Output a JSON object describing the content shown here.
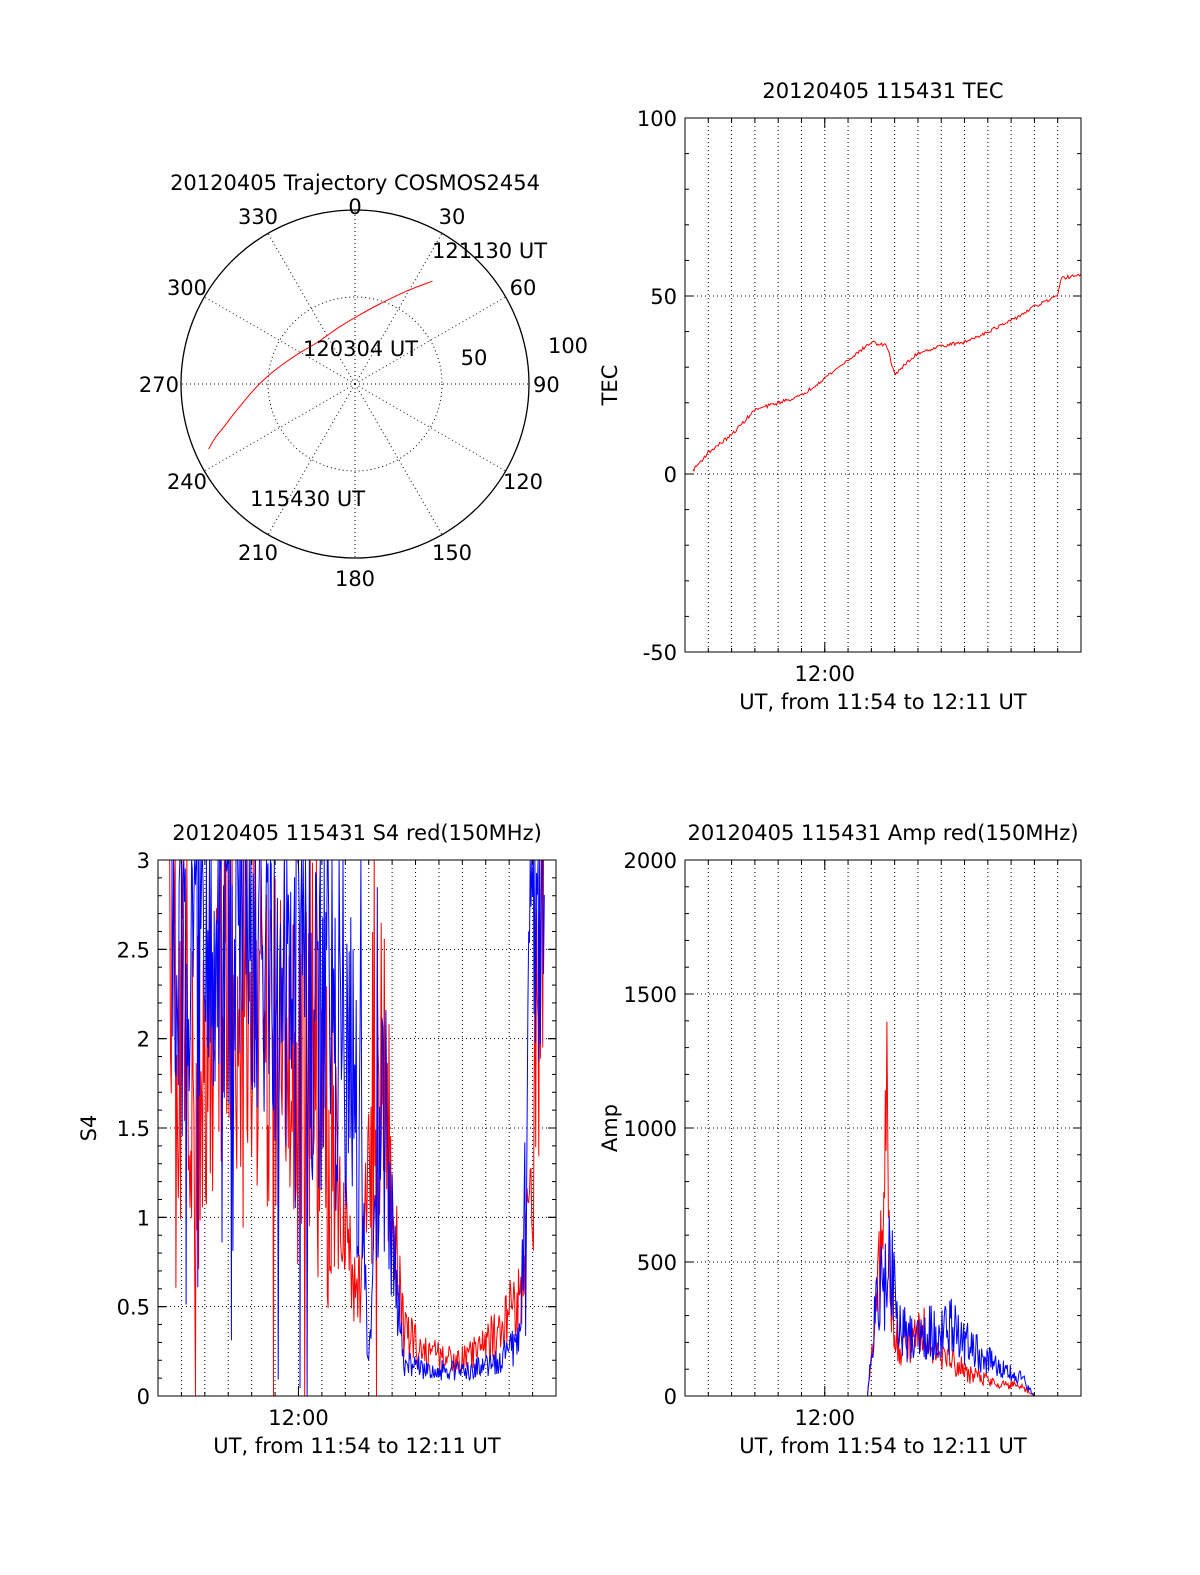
{
  "figure": {
    "colors": {
      "red": "#ff0000",
      "blue": "#0000ff",
      "axes": "#000000"
    }
  },
  "chart_data": [
    {
      "id": "trajectory",
      "type": "polar",
      "title": "20120405 Trajectory COSMOS2454",
      "azimuth_labels": [
        "0",
        "30",
        "60",
        "90",
        "120",
        "150",
        "180",
        "210",
        "240",
        "270",
        "300",
        "330"
      ],
      "radial_labels": [
        "50",
        "100"
      ],
      "radial_range": [
        0,
        100
      ],
      "grid": true,
      "series": [
        {
          "color": "#ff0000",
          "azimuth_deg": [
            246,
            249,
            252,
            256,
            260,
            265,
            271,
            278,
            287,
            298,
            312,
            328,
            345,
            2,
            17,
            29,
            37
          ],
          "radius": [
            92,
            86,
            79,
            72,
            66,
            60,
            54,
            48,
            42,
            37,
            33,
            32,
            34,
            39,
            48,
            61,
            74
          ]
        }
      ],
      "annotations": [
        {
          "text": "121130 UT",
          "azimuth_deg": 37,
          "radius": 74
        },
        {
          "text": "120304 UT",
          "azimuth_deg": 340,
          "radius": 22
        },
        {
          "text": "115430 UT",
          "azimuth_deg": 236,
          "radius": 92
        }
      ]
    },
    {
      "id": "tec",
      "type": "line",
      "title": "20120405 115431 TEC",
      "xlabel": "UT, from 11:54 to 12:11 UT",
      "ylabel": "TEC",
      "xlim": [
        "11:54",
        "12:11"
      ],
      "ylim": [
        -50,
        100
      ],
      "yticks": [
        -50,
        0,
        50,
        100
      ],
      "xticks": [
        {
          "value": "12:00",
          "label": "12:00"
        }
      ],
      "grid": true,
      "series": [
        {
          "color": "#ff0000",
          "x": [
            "11:54:20",
            "11:55:00",
            "11:56:00",
            "11:57:00",
            "11:58:00",
            "11:59:00",
            "12:00:00",
            "12:01:00",
            "12:02:00",
            "12:02:40",
            "12:03:00",
            "12:03:20",
            "12:04:00",
            "12:05:00",
            "12:06:00",
            "12:07:00",
            "12:08:00",
            "12:09:00",
            "12:10:00",
            "12:10:10",
            "12:11:00"
          ],
          "y": [
            1,
            6,
            11,
            18,
            20,
            22,
            27,
            32,
            37,
            36,
            28,
            30,
            34,
            36,
            37,
            40,
            43,
            47,
            50,
            55,
            56
          ]
        }
      ]
    },
    {
      "id": "s4",
      "type": "line",
      "title": "20120405 115431 S4 red(150MHz)",
      "xlabel": "UT, from 11:54 to 12:11 UT",
      "ylabel": "S4",
      "xlim": [
        "11:54",
        "12:11"
      ],
      "ylim": [
        0,
        3
      ],
      "yticks": [
        0,
        0.5,
        1,
        1.5,
        2,
        2.5,
        3
      ],
      "ytick_labels": [
        "0",
        "0.5",
        "1",
        "1.5",
        "2",
        "2.5",
        "3"
      ],
      "xticks": [
        {
          "value": "12:00",
          "label": "12:00"
        }
      ],
      "grid": true,
      "series": [
        {
          "color": "#ff0000",
          "x": [
            "11:54:30",
            "11:55:30",
            "11:56:30",
            "11:57:30",
            "11:58:30",
            "11:59:30",
            "12:00:30",
            "12:01:30",
            "12:02:30",
            "12:03:30",
            "12:04:30",
            "12:05:30",
            "12:06:30",
            "12:07:30",
            "12:08:30",
            "12:09:30",
            "12:10:00",
            "12:10:30"
          ],
          "y": [
            2.6,
            1.4,
            2.4,
            2.3,
            2.0,
            1.9,
            1.6,
            1.3,
            0.5,
            1.8,
            0.35,
            0.25,
            0.2,
            0.25,
            0.35,
            0.6,
            1.1,
            2.8
          ]
        },
        {
          "color": "#0000ff",
          "x": [
            "11:54:30",
            "11:55:30",
            "11:56:30",
            "11:57:30",
            "11:58:30",
            "11:59:30",
            "12:00:30",
            "12:01:30",
            "12:02:30",
            "12:03:00",
            "12:03:30",
            "12:04:30",
            "12:05:30",
            "12:06:30",
            "12:07:30",
            "12:08:30",
            "12:09:30",
            "12:10:00",
            "12:10:30"
          ],
          "y": [
            2.8,
            2.7,
            2.7,
            2.8,
            2.6,
            2.4,
            2.3,
            2.1,
            1.8,
            0.15,
            1.6,
            0.18,
            0.15,
            0.14,
            0.15,
            0.2,
            0.3,
            2.9,
            2.9
          ]
        }
      ]
    },
    {
      "id": "amp",
      "type": "line",
      "title": "20120405 115431 Amp red(150MHz)",
      "xlabel": "UT, from 11:54 to 12:11 UT",
      "ylabel": "Amp",
      "xlim": [
        "11:54",
        "12:11"
      ],
      "ylim": [
        0,
        2000
      ],
      "yticks": [
        0,
        500,
        1000,
        1500,
        2000
      ],
      "xticks": [
        {
          "value": "12:00",
          "label": "12:00"
        }
      ],
      "grid": true,
      "series": [
        {
          "color": "#ff0000",
          "x": [
            "11:54:20",
            "12:01:50",
            "12:02:10",
            "12:02:30",
            "12:02:40",
            "12:02:50",
            "12:03:10",
            "12:03:40",
            "12:04:10",
            "12:04:40",
            "12:05:20",
            "12:06:00",
            "12:06:40",
            "12:07:20",
            "12:08:00",
            "12:08:30",
            "12:09:00",
            "12:11:00"
          ],
          "y": [
            0,
            0,
            250,
            600,
            1100,
            400,
            150,
            220,
            260,
            200,
            150,
            90,
            70,
            50,
            40,
            30,
            0,
            0
          ]
        },
        {
          "color": "#0000ff",
          "x": [
            "11:54:20",
            "12:01:50",
            "12:02:10",
            "12:02:30",
            "12:02:50",
            "12:03:10",
            "12:03:40",
            "12:04:10",
            "12:04:40",
            "12:05:20",
            "12:06:00",
            "12:06:40",
            "12:07:20",
            "12:08:00",
            "12:08:30",
            "12:09:00",
            "12:11:00"
          ],
          "y": [
            0,
            0,
            300,
            420,
            500,
            250,
            220,
            250,
            230,
            260,
            200,
            150,
            110,
            80,
            60,
            0,
            0
          ]
        }
      ]
    }
  ]
}
